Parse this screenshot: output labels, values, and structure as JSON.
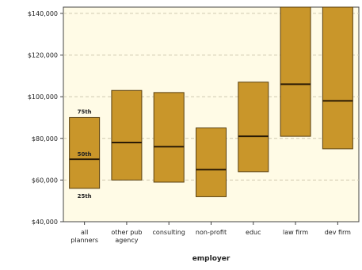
{
  "chart_data": {
    "type": "box",
    "xlabel": "employer",
    "ylabel": "",
    "y_ticks": [
      "$140,000",
      "$120,000",
      "$100,000",
      "$80,000",
      "$60,000",
      "$40,000"
    ],
    "y_tick_values": [
      140000,
      120000,
      100000,
      80000,
      60000,
      40000
    ],
    "ylim": [
      40000,
      143000
    ],
    "categories": [
      [
        "all",
        "planners"
      ],
      [
        "other pub",
        "agency"
      ],
      [
        "consulting"
      ],
      [
        "non-profit"
      ],
      [
        "educ"
      ],
      [
        "law firm"
      ],
      [
        "dev firm"
      ]
    ],
    "percentile_labels": [
      "75th",
      "50th",
      "25th"
    ],
    "series": [
      {
        "category": "all planners",
        "p25": 56000,
        "p50": 70000,
        "p75": 90000
      },
      {
        "category": "other pub agency",
        "p25": 60000,
        "p50": 78000,
        "p75": 103000
      },
      {
        "category": "consulting",
        "p25": 59000,
        "p50": 76000,
        "p75": 102000
      },
      {
        "category": "non-profit",
        "p25": 52000,
        "p50": 65000,
        "p75": 85000
      },
      {
        "category": "educ",
        "p25": 64000,
        "p50": 81000,
        "p75": 107000
      },
      {
        "category": "law firm",
        "p25": 81000,
        "p50": 106000,
        "p75": 143000
      },
      {
        "category": "dev firm",
        "p25": 75000,
        "p50": 98000,
        "p75": 143000
      }
    ],
    "colors": {
      "plot_background": "#fffbe6",
      "box_fill": "#c9962a",
      "box_stroke": "#5a4010",
      "median_line": "#2a1a05",
      "grid": "#cfc9b0",
      "axis": "#444444",
      "text": "#222222"
    },
    "grid": true
  }
}
